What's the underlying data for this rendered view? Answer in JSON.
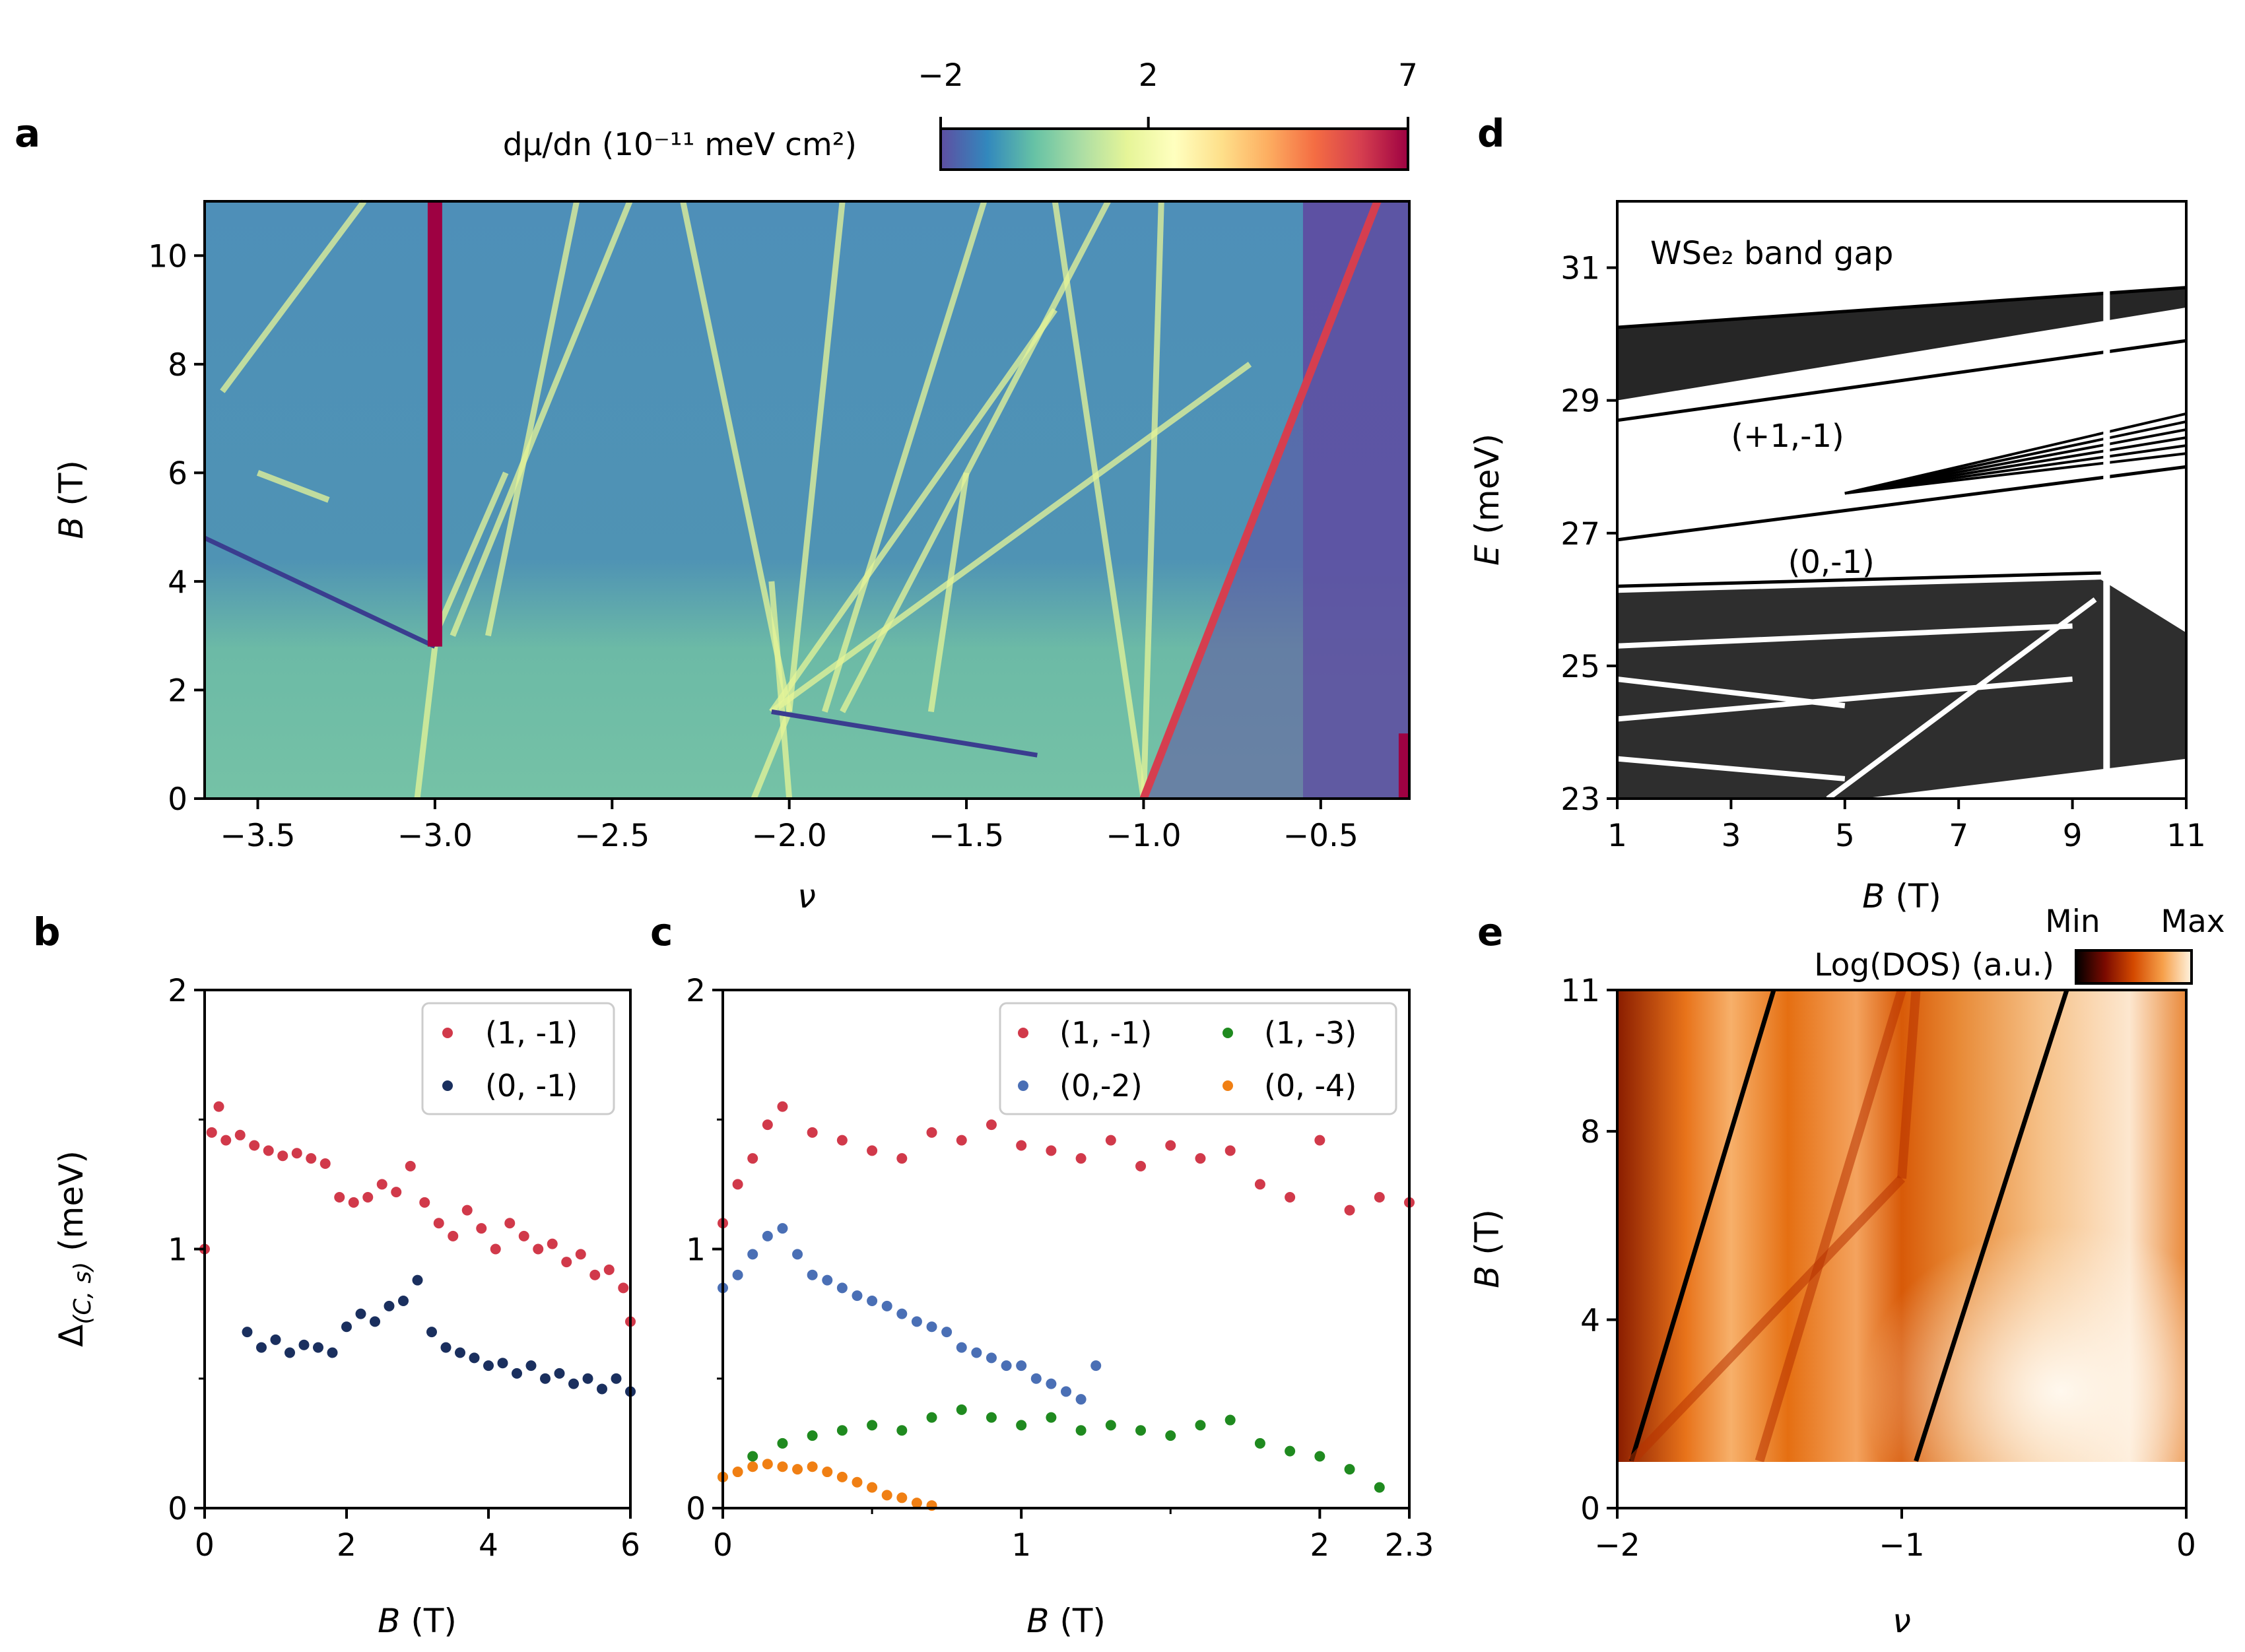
{
  "chart_data": [
    {
      "panel": "a",
      "panel_label": "a",
      "type": "heatmap",
      "xlabel": "ν",
      "ylabel_var": "B",
      "ylabel_unit": "(T)",
      "xlim": [
        -3.65,
        -0.25
      ],
      "ylim": [
        0,
        11
      ],
      "xticks": [
        -3.5,
        -3.0,
        -2.5,
        -2.0,
        -1.5,
        -1.0,
        -0.5
      ],
      "xtick_labels": [
        "−3.5",
        "−3.0",
        "−2.5",
        "−2.0",
        "−1.5",
        "−1.0",
        "−0.5"
      ],
      "yticks": [
        0,
        2,
        4,
        6,
        8,
        10
      ],
      "ytick_labels": [
        "0",
        "2",
        "4",
        "6",
        "8",
        "10"
      ],
      "colorbar": {
        "label": "dμ/dn (10⁻¹¹ meV cm²)",
        "ticks": [
          -2,
          2,
          7
        ],
        "tick_labels": [
          "−2",
          "2",
          "7"
        ],
        "colormap": [
          "#5e4fa2",
          "#3288bd",
          "#66c2a5",
          "#abdda4",
          "#e6f598",
          "#ffffbf",
          "#fee08b",
          "#fdae61",
          "#f46d43",
          "#d53e4f",
          "#9e0142"
        ]
      },
      "features": [
        {
          "name": "red vertical line at ν = −3",
          "nu": -3.0,
          "B_from": 2.8,
          "B_to": 11
        },
        {
          "name": "red diagonal line from ν = −1",
          "nu_start": -1.0,
          "B_start": 0,
          "nu_end": -0.34,
          "B_end": 11
        },
        {
          "name": "dark incompressible region",
          "nu_from": -0.55,
          "nu_to": -0.25
        }
      ],
      "background_color": "#5aa2a8"
    },
    {
      "panel": "b",
      "panel_label": "b",
      "type": "scatter",
      "xlabel_var": "B",
      "xlabel_unit": "(T)",
      "ylabel_base": "Δ",
      "ylabel_sub": "(C, s)",
      "ylabel_unit": "(meV)",
      "xlim": [
        0,
        6
      ],
      "ylim": [
        0,
        2
      ],
      "xticks": [
        0,
        2,
        4,
        6
      ],
      "xtick_labels": [
        "0",
        "2",
        "4",
        "6"
      ],
      "yticks": [
        0,
        1,
        2
      ],
      "ytick_labels": [
        "0",
        "1",
        "2"
      ],
      "series": [
        {
          "name": "(1, -1)",
          "color": "#d1394a",
          "x": [
            0.0,
            0.1,
            0.2,
            0.3,
            0.5,
            0.7,
            0.9,
            1.1,
            1.3,
            1.5,
            1.7,
            1.9,
            2.1,
            2.3,
            2.5,
            2.7,
            2.9,
            3.1,
            3.3,
            3.5,
            3.7,
            3.9,
            4.1,
            4.3,
            4.5,
            4.7,
            4.9,
            5.1,
            5.3,
            5.5,
            5.7,
            5.9,
            6.0
          ],
          "y": [
            1.0,
            1.45,
            1.55,
            1.42,
            1.44,
            1.4,
            1.38,
            1.36,
            1.37,
            1.35,
            1.33,
            1.2,
            1.18,
            1.2,
            1.25,
            1.22,
            1.32,
            1.18,
            1.1,
            1.05,
            1.15,
            1.08,
            1.0,
            1.1,
            1.05,
            1.0,
            1.02,
            0.95,
            0.98,
            0.9,
            0.92,
            0.85,
            0.72
          ]
        },
        {
          "name": "(0, -1)",
          "color": "#1a2f5e",
          "x": [
            0.6,
            0.8,
            1.0,
            1.2,
            1.4,
            1.6,
            1.8,
            2.0,
            2.2,
            2.4,
            2.6,
            2.8,
            3.0,
            3.2,
            3.4,
            3.6,
            3.8,
            4.0,
            4.2,
            4.4,
            4.6,
            4.8,
            5.0,
            5.2,
            5.4,
            5.6,
            5.8,
            6.0
          ],
          "y": [
            0.68,
            0.62,
            0.65,
            0.6,
            0.63,
            0.62,
            0.6,
            0.7,
            0.75,
            0.72,
            0.78,
            0.8,
            0.88,
            0.68,
            0.62,
            0.6,
            0.58,
            0.55,
            0.56,
            0.52,
            0.55,
            0.5,
            0.52,
            0.48,
            0.5,
            0.46,
            0.5,
            0.45
          ]
        }
      ]
    },
    {
      "panel": "c",
      "panel_label": "c",
      "type": "scatter",
      "xlabel_var": "B",
      "xlabel_unit": "(T)",
      "xlim": [
        0,
        2.3
      ],
      "ylim": [
        0,
        2
      ],
      "xticks": [
        0,
        1,
        2,
        2.3
      ],
      "xtick_labels": [
        "0",
        "1",
        "2",
        "2.3"
      ],
      "yticks": [
        0,
        1,
        2
      ],
      "ytick_labels": [
        "0",
        "1",
        "2"
      ],
      "series": [
        {
          "name": "(1, -1)",
          "color": "#d1394a",
          "x": [
            0.0,
            0.05,
            0.1,
            0.15,
            0.2,
            0.3,
            0.4,
            0.5,
            0.6,
            0.7,
            0.8,
            0.9,
            1.0,
            1.1,
            1.2,
            1.3,
            1.4,
            1.5,
            1.6,
            1.7,
            1.8,
            1.9,
            2.0,
            2.1,
            2.2,
            2.3
          ],
          "y": [
            1.1,
            1.25,
            1.35,
            1.48,
            1.55,
            1.45,
            1.42,
            1.38,
            1.35,
            1.45,
            1.42,
            1.48,
            1.4,
            1.38,
            1.35,
            1.42,
            1.32,
            1.4,
            1.35,
            1.38,
            1.25,
            1.2,
            1.42,
            1.15,
            1.2,
            1.18
          ]
        },
        {
          "name": "(0,-2)",
          "color": "#4a6fb5",
          "x": [
            0.0,
            0.05,
            0.1,
            0.15,
            0.2,
            0.25,
            0.3,
            0.35,
            0.4,
            0.45,
            0.5,
            0.55,
            0.6,
            0.65,
            0.7,
            0.75,
            0.8,
            0.85,
            0.9,
            0.95,
            1.0,
            1.05,
            1.1,
            1.15,
            1.2,
            1.25
          ],
          "y": [
            0.85,
            0.9,
            0.98,
            1.05,
            1.08,
            0.98,
            0.9,
            0.88,
            0.85,
            0.82,
            0.8,
            0.78,
            0.75,
            0.72,
            0.7,
            0.68,
            0.62,
            0.6,
            0.58,
            0.55,
            0.55,
            0.5,
            0.48,
            0.45,
            0.42,
            0.55
          ]
        },
        {
          "name": "(1, -3)",
          "color": "#1f8a1f",
          "x": [
            0.0,
            0.1,
            0.2,
            0.3,
            0.4,
            0.5,
            0.6,
            0.7,
            0.8,
            0.9,
            1.0,
            1.1,
            1.2,
            1.3,
            1.4,
            1.5,
            1.6,
            1.7,
            1.8,
            1.9,
            2.0,
            2.1,
            2.2
          ],
          "y": [
            0.12,
            0.2,
            0.25,
            0.28,
            0.3,
            0.32,
            0.3,
            0.35,
            0.38,
            0.35,
            0.32,
            0.35,
            0.3,
            0.32,
            0.3,
            0.28,
            0.32,
            0.34,
            0.25,
            0.22,
            0.2,
            0.15,
            0.08
          ]
        },
        {
          "name": "(0, -4)",
          "color": "#f07f13",
          "x": [
            0.0,
            0.05,
            0.1,
            0.15,
            0.2,
            0.25,
            0.3,
            0.35,
            0.4,
            0.45,
            0.5,
            0.55,
            0.6,
            0.65,
            0.7
          ],
          "y": [
            0.12,
            0.14,
            0.16,
            0.17,
            0.16,
            0.15,
            0.16,
            0.14,
            0.12,
            0.1,
            0.08,
            0.05,
            0.04,
            0.02,
            0.01
          ]
        }
      ]
    },
    {
      "panel": "d",
      "panel_label": "d",
      "type": "line",
      "title": "WSe₂ band gap",
      "xlabel_var": "B",
      "xlabel_unit": "(T)",
      "ylabel_var": "E",
      "ylabel_unit": "(meV)",
      "xlim": [
        1,
        11
      ],
      "ylim": [
        23,
        32
      ],
      "xticks": [
        1,
        3,
        5,
        7,
        9,
        11
      ],
      "xtick_labels": [
        "1",
        "3",
        "5",
        "7",
        "9",
        "11"
      ],
      "yticks": [
        23,
        25,
        27,
        29,
        31
      ],
      "ytick_labels": [
        "23",
        "25",
        "27",
        "29",
        "31"
      ],
      "annotations": [
        {
          "text": "(+1,-1)",
          "B": 3.0,
          "E": 28.3
        },
        {
          "text": "(0,-1)",
          "B": 4.0,
          "E": 26.4
        }
      ],
      "bands": [
        {
          "name": "lower edge of upper band",
          "B": [
            1,
            11
          ],
          "E": [
            28.7,
            29.9
          ]
        },
        {
          "name": "upper band top",
          "B": [
            1,
            11
          ],
          "E": [
            30.1,
            30.7
          ]
        },
        {
          "name": "(0,-1) level",
          "B": [
            1,
            11
          ],
          "E": [
            26.9,
            28.0
          ]
        },
        {
          "name": "lower band top",
          "B": [
            1,
            9.5
          ],
          "E": [
            26.2,
            26.4
          ]
        }
      ]
    },
    {
      "panel": "e",
      "panel_label": "e",
      "type": "heatmap",
      "xlabel": "ν",
      "ylabel_var": "B",
      "ylabel_unit": "(T)",
      "xlim": [
        -2,
        0
      ],
      "ylim": [
        0,
        11
      ],
      "xticks": [
        -2,
        -1,
        0
      ],
      "xtick_labels": [
        "−2",
        "−1",
        "0"
      ],
      "yticks": [
        0,
        4,
        8,
        11
      ],
      "ytick_labels": [
        "0",
        "4",
        "8",
        "11"
      ],
      "colorbar": {
        "label": "Log(DOS) (a.u.)",
        "min_label": "Min",
        "max_label": "Max",
        "colormap": [
          "#000000",
          "#7a0a00",
          "#d44a00",
          "#f6a04a",
          "#fff3e0"
        ]
      },
      "data_start_B": 1.0,
      "dark_lines": [
        {
          "nu_start": -1.95,
          "B_start": 1,
          "nu_end": -1.45,
          "B_end": 11
        },
        {
          "nu_start": -0.95,
          "B_start": 1,
          "nu_end": -0.42,
          "B_end": 11
        }
      ]
    }
  ]
}
